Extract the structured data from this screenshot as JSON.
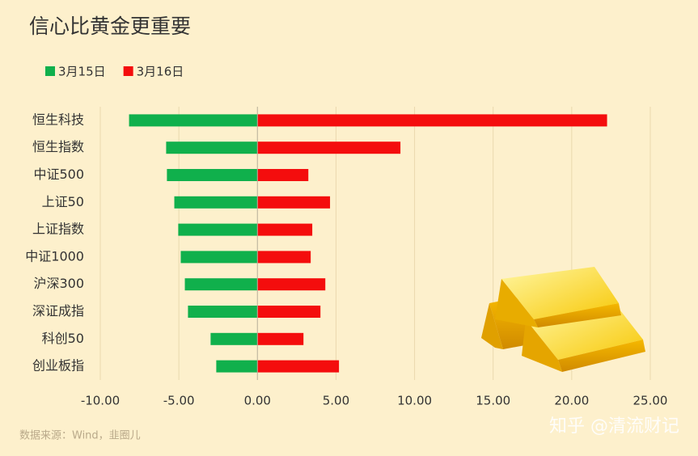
{
  "chart_data": {
    "type": "bar",
    "orientation": "horizontal",
    "title": "信心比黄金更重要",
    "categories": [
      "恒生科技",
      "恒生指数",
      "中证500",
      "上证50",
      "上证指数",
      "中证1000",
      "沪深300",
      "深证成指",
      "科创50",
      "创业板指"
    ],
    "series": [
      {
        "name": "3月15日",
        "color": "#10b04c",
        "values": [
          -8.17,
          -5.81,
          -5.76,
          -5.29,
          -5.04,
          -4.88,
          -4.62,
          -4.42,
          -2.98,
          -2.62
        ]
      },
      {
        "name": "3月16日",
        "color": "#f40d0d",
        "values": [
          22.25,
          9.1,
          3.24,
          4.62,
          3.49,
          3.39,
          4.32,
          4.01,
          2.93,
          5.19
        ]
      }
    ],
    "xlim": [
      -10,
      25
    ],
    "xticks": [
      {
        "value": -10,
        "label": "-10.00"
      },
      {
        "value": -5,
        "label": "-5.00"
      },
      {
        "value": 0,
        "label": "0.00"
      },
      {
        "value": 5,
        "label": "5.00"
      },
      {
        "value": 10,
        "label": "10.00"
      },
      {
        "value": 15,
        "label": "15.00"
      },
      {
        "value": 20,
        "label": "20.00"
      },
      {
        "value": 25,
        "label": "25.00"
      }
    ],
    "grid": true,
    "legend": "top-left",
    "source": "数据来源：Wind，韭圈儿",
    "watermark": "知乎 @清流财记"
  }
}
